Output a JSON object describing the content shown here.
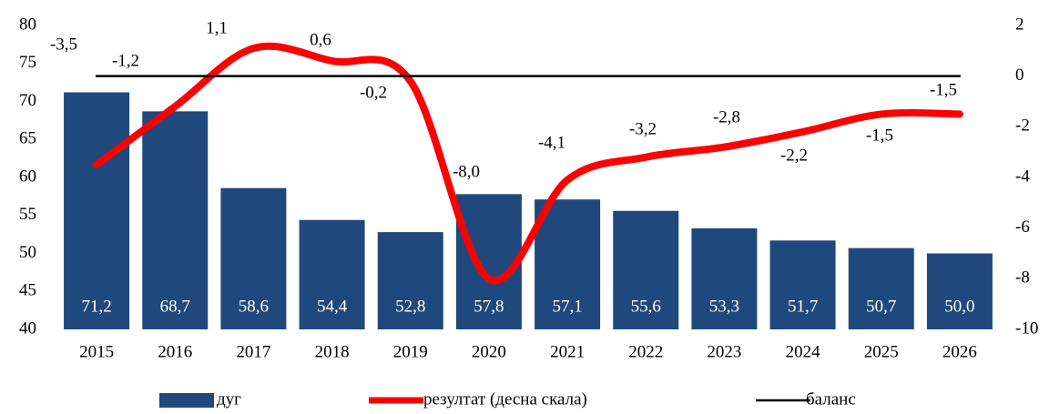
{
  "chart_data": {
    "type": "bar-line",
    "categories": [
      "2015",
      "2016",
      "2017",
      "2018",
      "2019",
      "2020",
      "2021",
      "2022",
      "2023",
      "2024",
      "2025",
      "2026"
    ],
    "series": [
      {
        "name": "дуг",
        "type": "bar",
        "color": "#1f497d",
        "axis": "y",
        "values": [
          71.2,
          68.7,
          58.6,
          54.4,
          52.8,
          57.8,
          57.1,
          55.6,
          53.3,
          51.7,
          50.7,
          50.0
        ],
        "value_labels": [
          "71,2",
          "68,7",
          "58,6",
          "54,4",
          "52,8",
          "57,8",
          "57,1",
          "55,6",
          "53,3",
          "51,7",
          "50,7",
          "50,0"
        ]
      },
      {
        "name": "резултат (десна скала)",
        "type": "line",
        "color": "#ff0000",
        "axis": "y2",
        "values": [
          -3.5,
          -1.2,
          1.1,
          0.6,
          -0.2,
          -8.0,
          -4.1,
          -3.2,
          -2.8,
          -2.2,
          -1.5,
          -1.5
        ],
        "value_labels": [
          "-3,5",
          "-1,2",
          "1,1",
          "0,6",
          "-0,2",
          "-8,0",
          "-4,1",
          "-3,2",
          "-2,8",
          "-2,2",
          "-1,5",
          "-1,5"
        ]
      },
      {
        "name": "баланс",
        "type": "line",
        "color": "#000000",
        "axis": "y2",
        "values": [
          0,
          0,
          0,
          0,
          0,
          0,
          0,
          0,
          0,
          0,
          0,
          0
        ]
      }
    ],
    "ylim": [
      40,
      80
    ],
    "yticks": [
      40,
      45,
      50,
      55,
      60,
      65,
      70,
      75,
      80
    ],
    "y2lim": [
      -10,
      2
    ],
    "y2ticks": [
      -10,
      -8,
      -6,
      -4,
      -2,
      0,
      2
    ]
  }
}
